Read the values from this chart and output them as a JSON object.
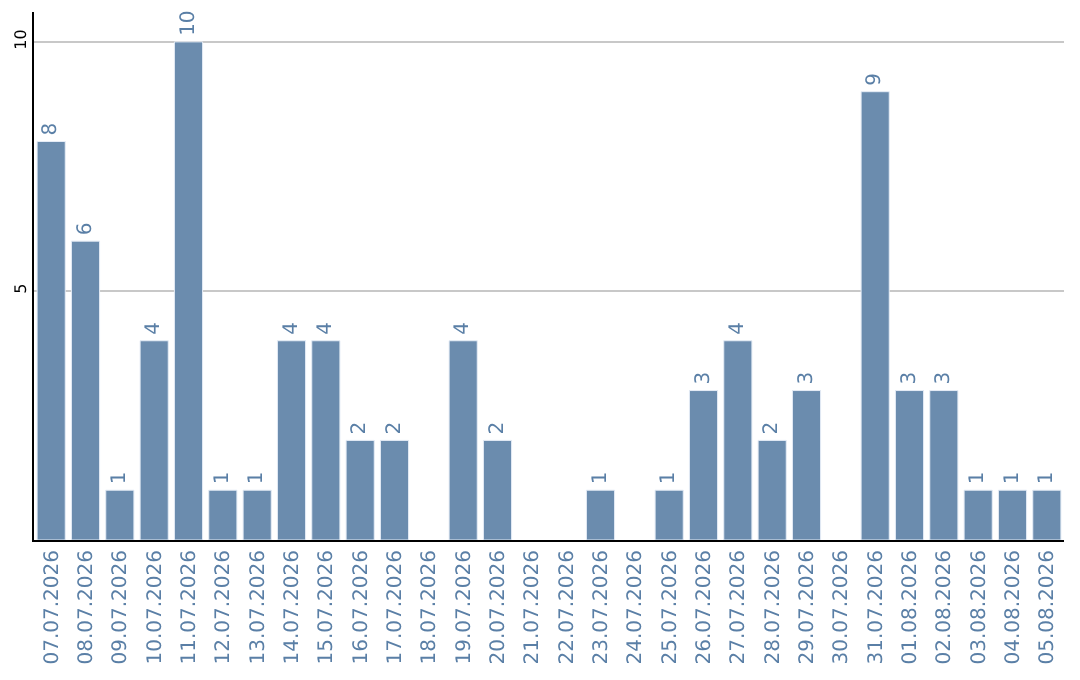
{
  "chart_data": {
    "type": "bar",
    "categories": [
      "07.07.2026",
      "08.07.2026",
      "09.07.2026",
      "10.07.2026",
      "11.07.2026",
      "12.07.2026",
      "13.07.2026",
      "14.07.2026",
      "15.07.2026",
      "16.07.2026",
      "17.07.2026",
      "18.07.2026",
      "19.07.2026",
      "20.07.2026",
      "21.07.2026",
      "22.07.2026",
      "23.07.2026",
      "24.07.2026",
      "25.07.2026",
      "26.07.2026",
      "27.07.2026",
      "28.07.2026",
      "29.07.2026",
      "30.07.2026",
      "31.07.2026",
      "01.08.2026",
      "02.08.2026",
      "03.08.2026",
      "04.08.2026",
      "05.08.2026"
    ],
    "values": [
      8,
      6,
      1,
      4,
      10,
      1,
      1,
      4,
      4,
      2,
      2,
      null,
      4,
      2,
      null,
      null,
      1,
      null,
      1,
      3,
      4,
      2,
      3,
      null,
      9,
      3,
      3,
      1,
      1,
      1
    ],
    "color": "#6b8cae",
    "ylim": [
      0,
      10.6
    ],
    "yticks": [
      5,
      10
    ],
    "grid": "y",
    "data_labels": true
  }
}
